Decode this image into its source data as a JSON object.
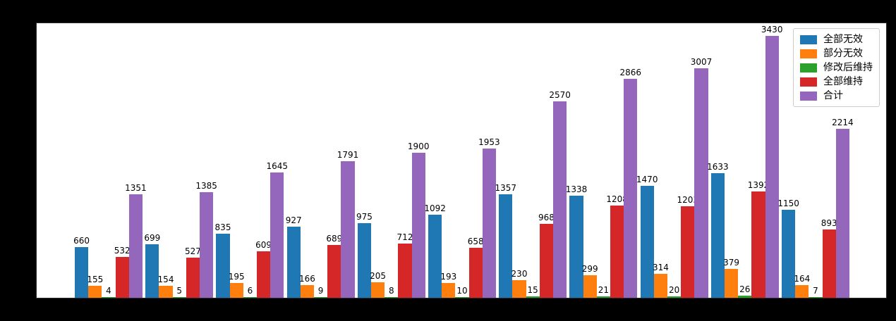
{
  "figure": {
    "background_color": "#000000",
    "plot_background_color": "#ffffff",
    "title": "",
    "x_tick_labels_visible": false,
    "y_tick_labels_visible": false
  },
  "chart_data": {
    "type": "bar",
    "title": "",
    "xlabel": "",
    "ylabel": "",
    "n_groups": 11,
    "grid": false,
    "bar_value_labels": true,
    "legend_position": "upper right",
    "ylim": [
      0,
      3614
    ],
    "series": [
      {
        "name": "全部无效",
        "color": "#1f77b4",
        "values": [
          660,
          699,
          835,
          927,
          975,
          1092,
          1357,
          1338,
          1470,
          1633,
          1150
        ]
      },
      {
        "name": "部分无效",
        "color": "#ff7f0e",
        "values": [
          155,
          154,
          195,
          166,
          205,
          193,
          230,
          299,
          314,
          379,
          164
        ]
      },
      {
        "name": "修改后维持",
        "color": "#2ca02c",
        "values": [
          4,
          5,
          6,
          9,
          8,
          10,
          15,
          21,
          20,
          26,
          7
        ]
      },
      {
        "name": "全部维持",
        "color": "#d62728",
        "values": [
          532,
          527,
          609,
          689,
          712,
          658,
          968,
          1208,
          1203,
          1392,
          893
        ]
      },
      {
        "name": "合计",
        "color": "#9467bd",
        "values": [
          1351,
          1385,
          1645,
          1791,
          1900,
          1953,
          2570,
          2866,
          3007,
          3430,
          2214
        ]
      }
    ]
  }
}
